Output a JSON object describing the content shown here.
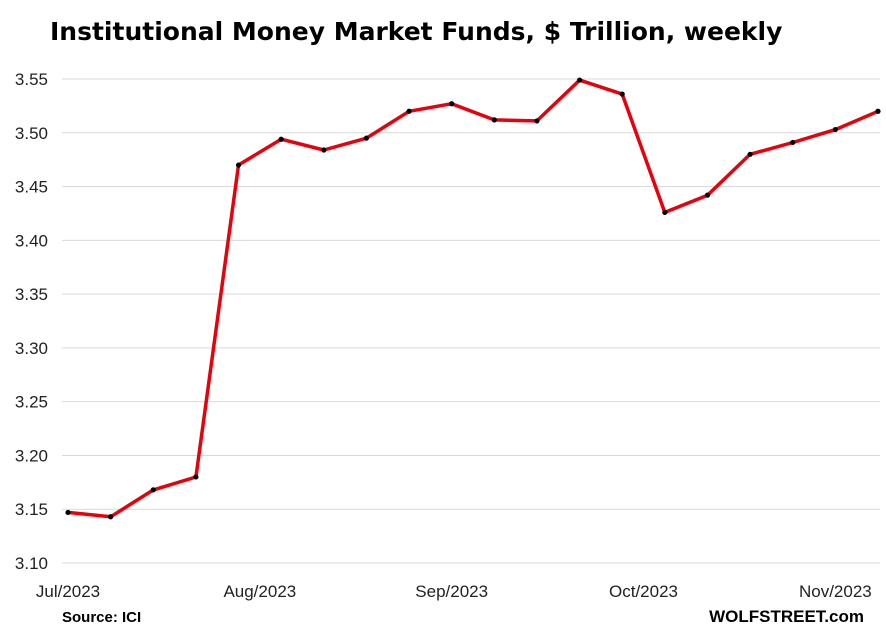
{
  "chart_data": {
    "type": "line",
    "title": "Institutional Money Market Funds, $ Trillion, weekly",
    "xlabel": "",
    "ylabel": "",
    "ylim": [
      3.1,
      3.55
    ],
    "yticks": [
      "3.10",
      "3.15",
      "3.20",
      "3.25",
      "3.30",
      "3.35",
      "3.40",
      "3.45",
      "3.50",
      "3.55"
    ],
    "grid": true,
    "xtick_labels": [
      {
        "label": "Jul/2023",
        "at_index": 0
      },
      {
        "label": "Aug/2023",
        "at_index": 4.5
      },
      {
        "label": "Sep/2023",
        "at_index": 9
      },
      {
        "label": "Oct/2023",
        "at_index": 13.5
      },
      {
        "label": "Nov/2023",
        "at_index": 18
      }
    ],
    "x": [
      "2023-07-05",
      "2023-07-12",
      "2023-07-19",
      "2023-07-26",
      "2023-08-02",
      "2023-08-09",
      "2023-08-16",
      "2023-08-23",
      "2023-08-30",
      "2023-09-06",
      "2023-09-13",
      "2023-09-20",
      "2023-09-27",
      "2023-10-04",
      "2023-10-11",
      "2023-10-18",
      "2023-10-25",
      "2023-11-01",
      "2023-11-08",
      "2023-11-15"
    ],
    "series": [
      {
        "name": "",
        "color": "#e8000b",
        "marker_color": "#000000",
        "values": [
          3.147,
          3.143,
          3.168,
          3.18,
          3.47,
          3.494,
          3.484,
          3.495,
          3.52,
          3.527,
          3.512,
          3.511,
          3.549,
          3.536,
          3.426,
          3.442,
          3.48,
          3.491,
          3.503,
          3.52
        ]
      }
    ]
  },
  "footer": {
    "source": "Source: ICI",
    "brand": "WOLFSTREET.com"
  }
}
